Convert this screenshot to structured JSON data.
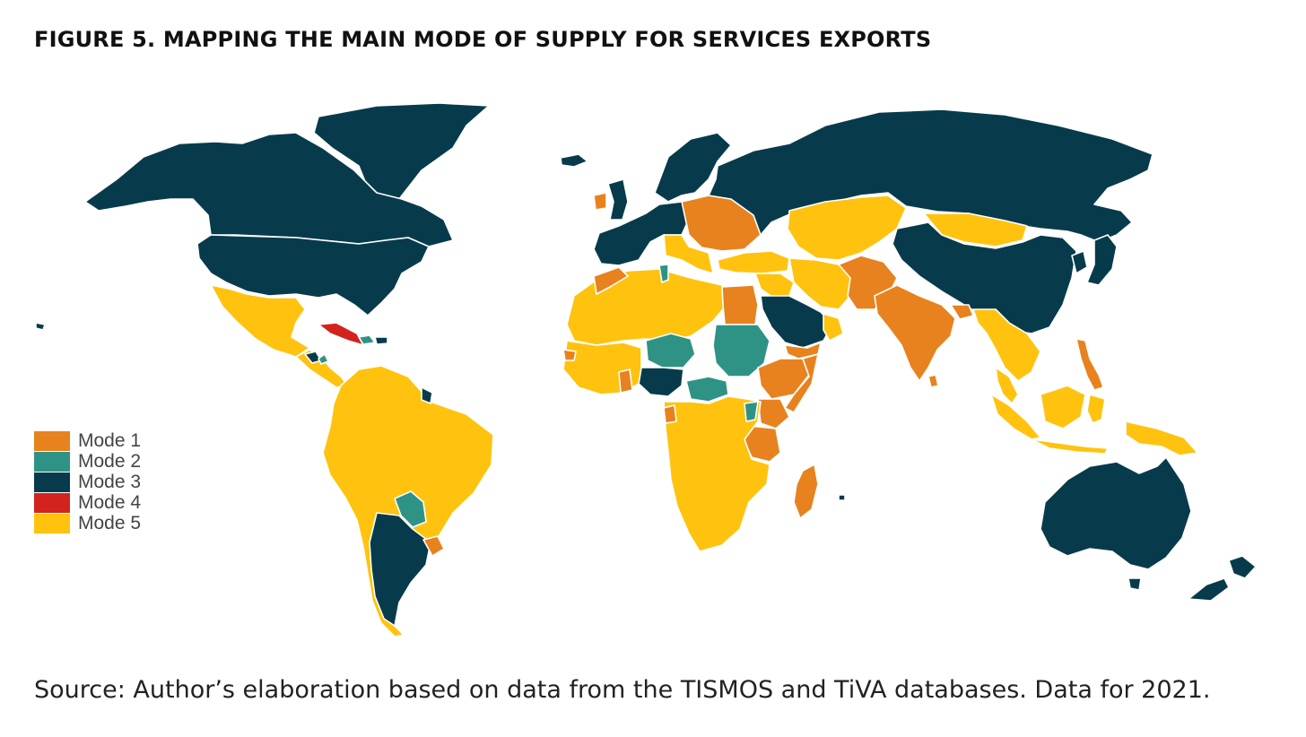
{
  "figure": {
    "title": "FIGURE 5. MAPPING THE MAIN MODE OF SUPPLY FOR SERVICES EXPORTS",
    "source": "Source: Author’s elaboration based on data from the TISMOS and TiVA databases. Data for 2021."
  },
  "legend": {
    "items": [
      {
        "label": "Mode 1",
        "color": "#E8821E"
      },
      {
        "label": "Mode 2",
        "color": "#2E9385"
      },
      {
        "label": "Mode 3",
        "color": "#073B4C"
      },
      {
        "label": "Mode 4",
        "color": "#D2231E"
      },
      {
        "label": "Mode 5",
        "color": "#FFC30F"
      }
    ]
  }
}
